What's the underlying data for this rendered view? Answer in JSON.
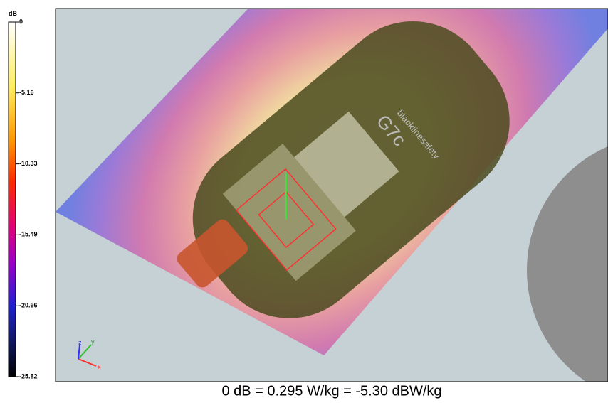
{
  "colorbar": {
    "unit": "dB",
    "ticks": [
      0,
      -5.16,
      -10.33,
      -15.49,
      -20.66,
      -25.82
    ]
  },
  "device": {
    "brand": "blacklinesafety",
    "model": "G7c"
  },
  "axes": {
    "x": "x",
    "y": "y",
    "z": "z"
  },
  "caption": "0 dB = 0.295 W/kg = -5.30 dBW/kg"
}
